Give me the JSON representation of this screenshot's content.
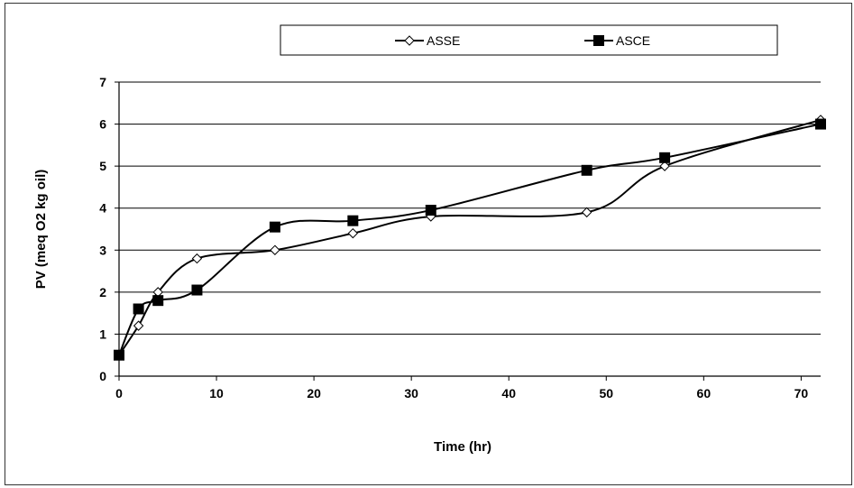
{
  "chart_data": {
    "type": "line",
    "title": "",
    "xlabel": "Time (hr)",
    "ylabel": "PV (meq O2 kg oil)",
    "xlim": [
      0,
      72
    ],
    "ylim": [
      0,
      7
    ],
    "xticks": [
      0,
      10,
      20,
      30,
      40,
      50,
      60,
      70
    ],
    "yticks": [
      0,
      1,
      2,
      3,
      4,
      5,
      6,
      7
    ],
    "grid": "horizontal",
    "legend_position": "top",
    "series": [
      {
        "name": "ASSE",
        "marker": "diamond-open",
        "color": "#000000",
        "smooth": true,
        "points": [
          [
            0,
            0.5
          ],
          [
            2,
            1.2
          ],
          [
            4,
            2.0
          ],
          [
            8,
            2.8
          ],
          [
            16,
            3.0
          ],
          [
            24,
            3.4
          ],
          [
            32,
            3.8
          ],
          [
            48,
            3.9
          ],
          [
            56,
            5.0
          ],
          [
            72,
            6.1
          ]
        ]
      },
      {
        "name": "ASCE",
        "marker": "square-filled",
        "color": "#000000",
        "smooth": true,
        "points": [
          [
            0,
            0.5
          ],
          [
            2,
            1.6
          ],
          [
            4,
            1.8
          ],
          [
            8,
            2.05
          ],
          [
            16,
            3.55
          ],
          [
            24,
            3.7
          ],
          [
            32,
            3.95
          ],
          [
            48,
            4.9
          ],
          [
            56,
            5.2
          ],
          [
            72,
            6.0
          ]
        ]
      }
    ]
  }
}
